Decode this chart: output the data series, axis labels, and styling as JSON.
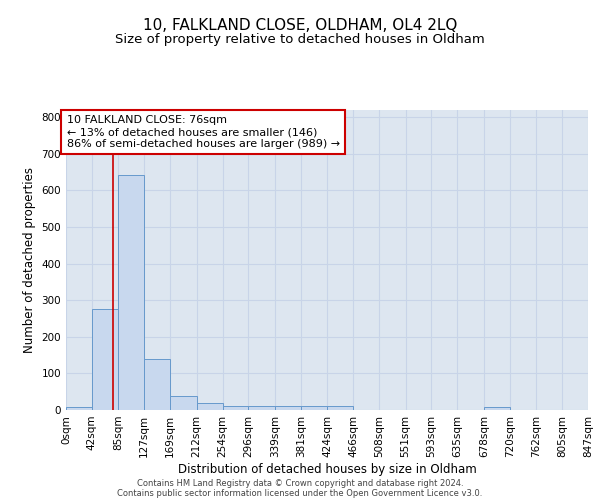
{
  "title1": "10, FALKLAND CLOSE, OLDHAM, OL4 2LQ",
  "title2": "Size of property relative to detached houses in Oldham",
  "xlabel": "Distribution of detached houses by size in Oldham",
  "ylabel": "Number of detached properties",
  "bin_edges": [
    0,
    42,
    85,
    127,
    169,
    212,
    254,
    296,
    339,
    381,
    424,
    466,
    508,
    551,
    593,
    635,
    678,
    720,
    762,
    805,
    847
  ],
  "bar_heights": [
    8,
    275,
    643,
    140,
    38,
    18,
    12,
    12,
    12,
    10,
    10,
    0,
    0,
    0,
    0,
    0,
    8,
    0,
    0,
    0
  ],
  "bar_color": "#c8d8ee",
  "bar_edge_color": "#6699cc",
  "ylim": [
    0,
    820
  ],
  "yticks": [
    0,
    100,
    200,
    300,
    400,
    500,
    600,
    700,
    800
  ],
  "xtick_labels": [
    "0sqm",
    "42sqm",
    "85sqm",
    "127sqm",
    "169sqm",
    "212sqm",
    "254sqm",
    "296sqm",
    "339sqm",
    "381sqm",
    "424sqm",
    "466sqm",
    "508sqm",
    "551sqm",
    "593sqm",
    "635sqm",
    "678sqm",
    "720sqm",
    "762sqm",
    "805sqm",
    "847sqm"
  ],
  "red_line_x": 76,
  "red_line_color": "#cc0000",
  "annotation_text": "10 FALKLAND CLOSE: 76sqm\n← 13% of detached houses are smaller (146)\n86% of semi-detached houses are larger (989) →",
  "annotation_box_color": "#ffffff",
  "annotation_box_edge": "#cc0000",
  "grid_color": "#c8d4e8",
  "background_color": "#dde6f0",
  "title1_fontsize": 11,
  "title2_fontsize": 9.5,
  "axis_label_fontsize": 8.5,
  "tick_fontsize": 7.5,
  "annotation_fontsize": 8,
  "footer_line1": "Contains HM Land Registry data © Crown copyright and database right 2024.",
  "footer_line2": "Contains public sector information licensed under the Open Government Licence v3.0."
}
